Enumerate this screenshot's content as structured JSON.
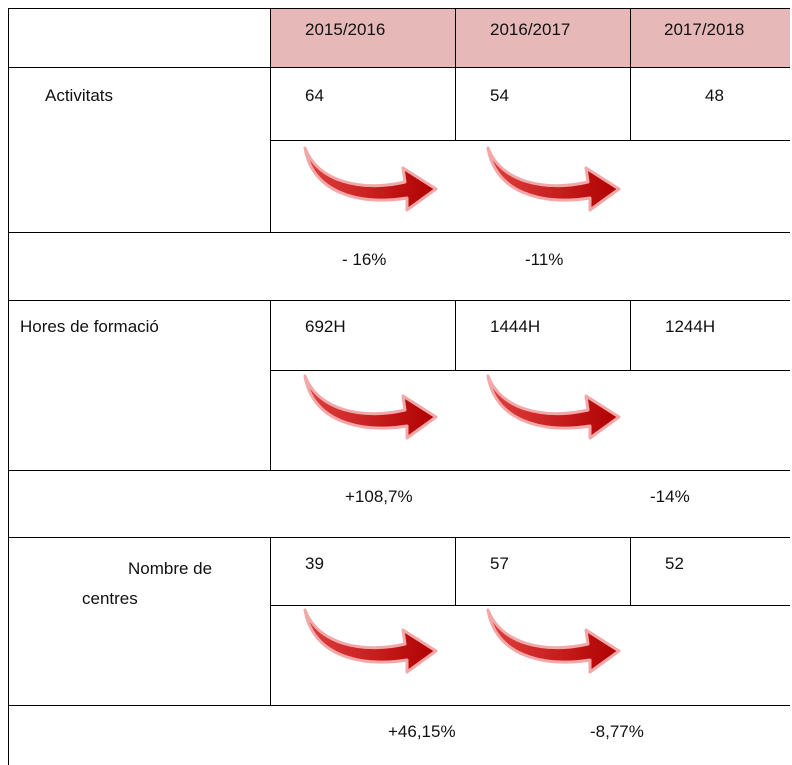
{
  "header": {
    "columns": [
      "2015/2016",
      "2016/2017",
      "2017/2018"
    ]
  },
  "rows": [
    {
      "label": "Activitats",
      "values": [
        "64",
        "54",
        "48"
      ],
      "changes": [
        "- 16%",
        "-11%"
      ]
    },
    {
      "label": "Hores de formació",
      "values": [
        "692H",
        "1444H",
        "1244H"
      ],
      "changes": [
        "+108,7%",
        "-14%"
      ]
    },
    {
      "label": "Nombre de centres",
      "values": [
        "39",
        "57",
        "52"
      ],
      "changes": [
        "+46,15%",
        "-8,77%"
      ]
    }
  ]
}
